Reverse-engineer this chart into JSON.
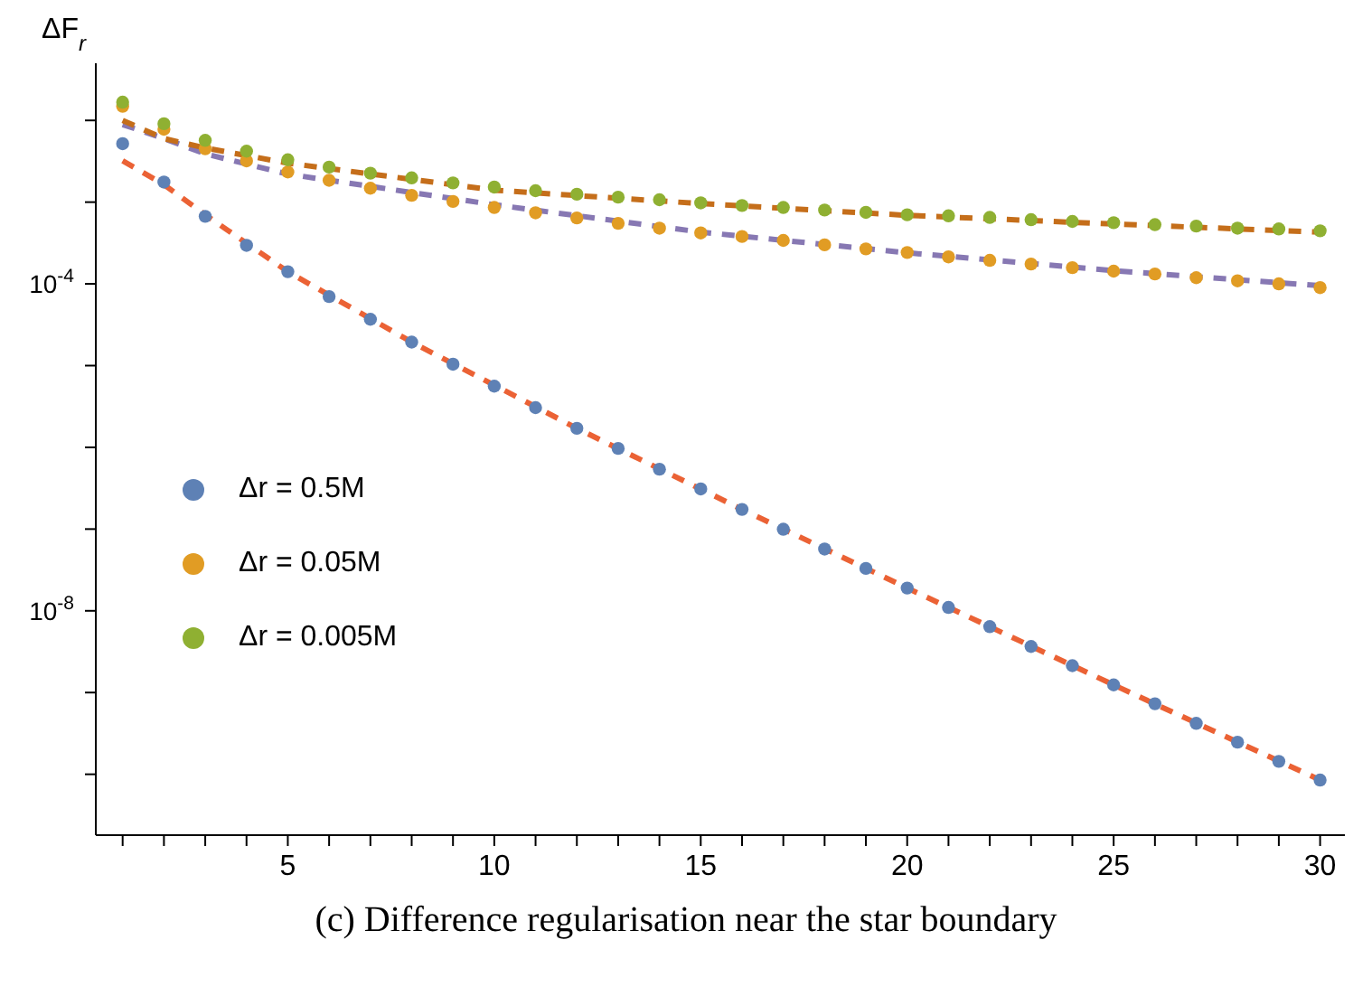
{
  "chart_data": {
    "type": "scatter",
    "title": "(c) Difference regularisation near the star boundary",
    "ylabel": "ΔF$_{r}$",
    "log": "y",
    "grid": false,
    "legend": "left",
    "marker": "circle",
    "xlim": [
      0.35,
      30.6
    ],
    "xticks": [
      {
        "value": 1,
        "label": null
      },
      {
        "value": 2,
        "label": null
      },
      {
        "value": 3,
        "label": null
      },
      {
        "value": 4,
        "label": null
      },
      5,
      {
        "value": 6,
        "label": null
      },
      {
        "value": 7,
        "label": null
      },
      {
        "value": 8,
        "label": null
      },
      {
        "value": 9,
        "label": null
      },
      10,
      {
        "value": 11,
        "label": null
      },
      {
        "value": 12,
        "label": null
      },
      {
        "value": 13,
        "label": null
      },
      {
        "value": 14,
        "label": null
      },
      15,
      {
        "value": 16,
        "label": null
      },
      {
        "value": 17,
        "label": null
      },
      {
        "value": 18,
        "label": null
      },
      {
        "value": 19,
        "label": null
      },
      20,
      {
        "value": 21,
        "label": null
      },
      {
        "value": 22,
        "label": null
      },
      {
        "value": 23,
        "label": null
      },
      {
        "value": 24,
        "label": null
      },
      25,
      {
        "value": 26,
        "label": null
      },
      {
        "value": 27,
        "label": null
      },
      {
        "value": 28,
        "label": null
      },
      {
        "value": 29,
        "label": null
      },
      30
    ],
    "ylim": [
      1.8e-11,
      0.05
    ],
    "yticks": [
      {
        "value": 1e-10,
        "label": null
      },
      {
        "value": 1e-09,
        "label": null
      },
      {
        "value": 1e-08,
        "label": "10$^{-8}$"
      },
      {
        "value": 1e-07,
        "label": null
      },
      {
        "value": 1e-06,
        "label": null
      },
      {
        "value": 1e-05,
        "label": null
      },
      {
        "value": 0.0001,
        "label": "10$^{-4}$"
      },
      {
        "value": 0.001,
        "label": null
      },
      {
        "value": 0.01,
        "label": null
      }
    ],
    "x": [
      1,
      2,
      3,
      4,
      5,
      6,
      7,
      8,
      9,
      10,
      11,
      12,
      13,
      14,
      15,
      16,
      17,
      18,
      19,
      20,
      21,
      22,
      23,
      24,
      25,
      26,
      27,
      28,
      29,
      30
    ],
    "series": [
      {
        "name": "Δr = 0.5M",
        "color": "#5e81b5",
        "values": [
          0.00519,
          0.00176,
          0.00067,
          0.000296,
          0.000141,
          7e-05,
          3.69e-05,
          1.94e-05,
          1.04e-05,
          5.6e-06,
          3.06e-06,
          1.71e-06,
          9.7e-07,
          5.4e-07,
          3.1e-07,
          1.74e-07,
          9.95e-08,
          5.7e-08,
          3.3e-08,
          1.9e-08,
          1.1e-08,
          6.4e-09,
          3.66e-09,
          2.13e-09,
          1.24e-09,
          7.3e-10,
          4.2e-10,
          2.47e-10,
          1.44e-10,
          8.5e-11
        ]
      },
      {
        "name": "Δr = 0.05M",
        "color": "#e19c24",
        "values": [
          0.0149,
          0.0078,
          0.0045,
          0.0032,
          0.00234,
          0.00185,
          0.00148,
          0.00121,
          0.00102,
          0.00086,
          0.00074,
          0.00064,
          0.00055,
          0.00048,
          0.00042,
          0.00038,
          0.00034,
          0.0003,
          0.000268,
          0.000242,
          0.000214,
          0.000194,
          0.000175,
          0.000158,
          0.000143,
          0.000132,
          0.000119,
          0.000109,
          0.0001,
          9e-05
        ]
      },
      {
        "name": "Δr = 0.005M",
        "color": "#8fb032",
        "values": [
          0.0167,
          0.0091,
          0.0057,
          0.0042,
          0.0033,
          0.00268,
          0.00226,
          0.00198,
          0.00172,
          0.00153,
          0.00138,
          0.00125,
          0.00115,
          0.00107,
          0.00098,
          0.00091,
          0.00086,
          0.0008,
          0.00075,
          0.0007,
          0.00068,
          0.00065,
          0.00061,
          0.00058,
          0.00056,
          0.00053,
          0.00051,
          0.00048,
          0.00047,
          0.000446
        ]
      },
      {
        "type": "line",
        "line_style": "dashed",
        "marker": "none",
        "color": "#eb6235",
        "x": [
          1,
          2,
          3,
          5,
          8,
          12,
          16,
          20,
          25,
          30
        ],
        "values": [
          0.0032,
          0.00164,
          0.0007,
          0.000141,
          1.94e-05,
          1.71e-06,
          1.74e-07,
          1.9e-08,
          1.24e-09,
          8.5e-11
        ]
      },
      {
        "type": "line",
        "line_style": "dashed",
        "marker": "none",
        "color": "#8778b3",
        "x": [
          1,
          2,
          3,
          5,
          10,
          15,
          20,
          25,
          30
        ],
        "values": [
          0.0089,
          0.006,
          0.0039,
          0.0022,
          0.00093,
          0.00043,
          0.00024,
          0.000145,
          9.5e-05
        ]
      },
      {
        "type": "line",
        "line_style": "dashed",
        "marker": "none",
        "color": "#c56e1a",
        "x": [
          1,
          2,
          3,
          5,
          10,
          15,
          20,
          25,
          30
        ],
        "values": [
          0.01,
          0.006,
          0.0046,
          0.003,
          0.0014,
          0.00096,
          0.00069,
          0.00054,
          0.00043
        ]
      }
    ]
  }
}
